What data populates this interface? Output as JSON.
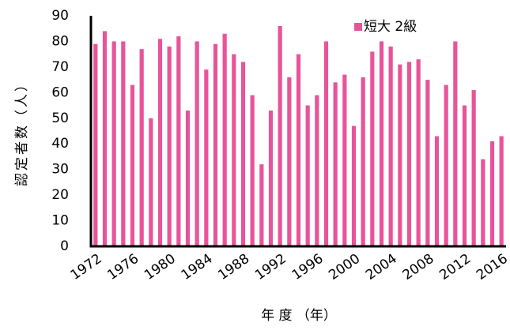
{
  "chart_data": {
    "type": "bar",
    "categories": [
      "1972",
      null,
      null,
      null,
      "1976",
      null,
      null,
      null,
      "1980",
      null,
      null,
      null,
      "1984",
      null,
      null,
      null,
      "1988",
      null,
      null,
      null,
      "1992",
      null,
      null,
      null,
      "1996",
      null,
      null,
      null,
      "2000",
      null,
      null,
      null,
      "2004",
      null,
      null,
      null,
      "2008",
      null,
      null,
      null,
      "2012",
      null,
      null,
      null,
      "2016"
    ],
    "series": [
      {
        "name": "短大 2級",
        "color": "#e8549a",
        "values": [
          79,
          84,
          80,
          80,
          63,
          77,
          50,
          81,
          78,
          82,
          53,
          80,
          69,
          79,
          83,
          75,
          72,
          59,
          32,
          53,
          86,
          66,
          75,
          55,
          59,
          80,
          64,
          67,
          47,
          66,
          76,
          80,
          78,
          71,
          72,
          73,
          65,
          43,
          63,
          80,
          55,
          61,
          34,
          41,
          43
        ]
      }
    ],
    "ylim": [
      0,
      90
    ],
    "yticks": [
      0,
      10,
      20,
      30,
      40,
      50,
      60,
      70,
      80,
      90
    ],
    "ylabel": "認定者数（人）",
    "xlabel": "年 度 （年）",
    "grid": false,
    "legend": "top-right"
  }
}
